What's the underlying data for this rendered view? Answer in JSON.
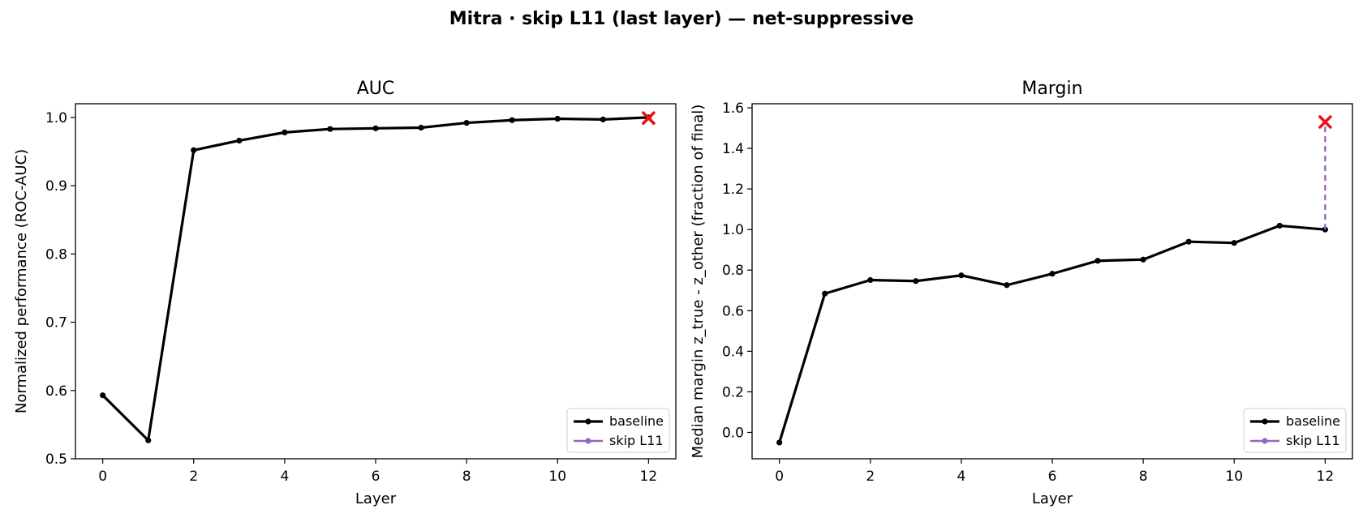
{
  "figure": {
    "title": "Mitra · skip L11 (last layer) — net-suppressive"
  },
  "colors": {
    "baseline": "#000000",
    "skip": "#9467bd",
    "marker_x": "#e8131b"
  },
  "chart_data": [
    {
      "type": "line",
      "title": "AUC",
      "xlabel": "Layer",
      "ylabel": "Normalized performance (ROC-AUC)",
      "xlim": [
        -0.6,
        12.6
      ],
      "ylim": [
        0.5,
        1.02
      ],
      "xticks": [
        0,
        2,
        4,
        6,
        8,
        10,
        12
      ],
      "xtick_labels": [
        "0",
        "2",
        "4",
        "6",
        "8",
        "10",
        "12"
      ],
      "yticks": [
        0.5,
        0.6,
        0.7,
        0.8,
        0.9,
        1.0
      ],
      "ytick_labels": [
        "0.5",
        "0.6",
        "0.7",
        "0.8",
        "0.9",
        "1.0"
      ],
      "grid": false,
      "legend_position": "lower-right",
      "series": [
        {
          "name": "baseline",
          "x": [
            0,
            1,
            2,
            3,
            4,
            5,
            6,
            7,
            8,
            9,
            10,
            11,
            12
          ],
          "values": [
            0.593,
            0.527,
            0.952,
            0.966,
            0.978,
            0.983,
            0.984,
            0.985,
            0.992,
            0.996,
            0.998,
            0.997,
            1.0
          ]
        },
        {
          "name": "skip L11",
          "x": [
            12
          ],
          "values": [
            0.999
          ]
        }
      ]
    },
    {
      "type": "line",
      "title": "Margin",
      "xlabel": "Layer",
      "ylabel": "Median margin z_true - z_other (fraction of final)",
      "xlim": [
        -0.6,
        12.6
      ],
      "ylim": [
        -0.13,
        1.62
      ],
      "xticks": [
        0,
        2,
        4,
        6,
        8,
        10,
        12
      ],
      "xtick_labels": [
        "0",
        "2",
        "4",
        "6",
        "8",
        "10",
        "12"
      ],
      "yticks": [
        0.0,
        0.2,
        0.4,
        0.6,
        0.8,
        1.0,
        1.2,
        1.4,
        1.6
      ],
      "ytick_labels": [
        "0.0",
        "0.2",
        "0.4",
        "0.6",
        "0.8",
        "1.0",
        "1.2",
        "1.4",
        "1.6"
      ],
      "grid": false,
      "legend_position": "lower-right",
      "series": [
        {
          "name": "baseline",
          "x": [
            0,
            1,
            2,
            3,
            4,
            5,
            6,
            7,
            8,
            9,
            10,
            11,
            12
          ],
          "values": [
            -0.05,
            0.684,
            0.751,
            0.746,
            0.774,
            0.726,
            0.782,
            0.846,
            0.852,
            0.94,
            0.934,
            1.019,
            1.0
          ]
        },
        {
          "name": "skip L11",
          "x": [
            12
          ],
          "values": [
            1.53
          ]
        }
      ]
    }
  ]
}
